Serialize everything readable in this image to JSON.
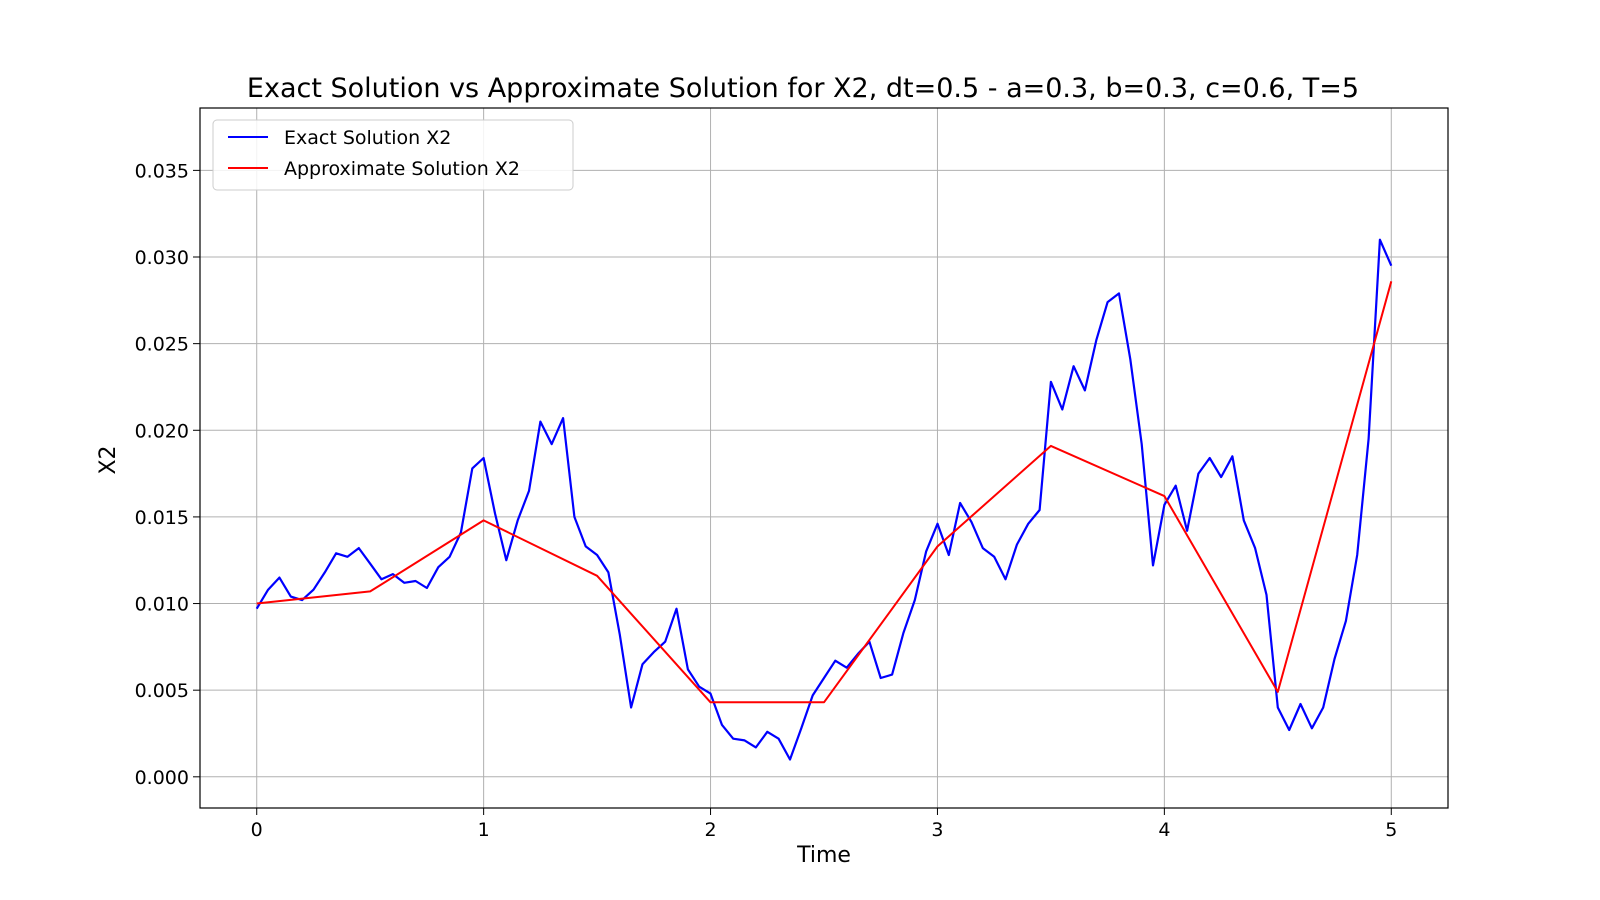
{
  "chart_data": {
    "type": "line",
    "title": "Exact Solution vs Approximate Solution for X2, dt=0.5 - a=0.3, b=0.3, c=0.6, T=5",
    "xlabel": "Time",
    "ylabel": "X2",
    "xlim": [
      -0.25,
      5.25
    ],
    "ylim": [
      -0.0018,
      0.0386
    ],
    "xticks": [
      0,
      1,
      2,
      3,
      4,
      5
    ],
    "xtick_labels": [
      "0",
      "1",
      "2",
      "3",
      "4",
      "5"
    ],
    "yticks": [
      0.0,
      0.005,
      0.01,
      0.015,
      0.02,
      0.025,
      0.03,
      0.035
    ],
    "ytick_labels": [
      "0.000",
      "0.005",
      "0.010",
      "0.015",
      "0.020",
      "0.025",
      "0.030",
      "0.035"
    ],
    "grid": true,
    "legend_position": "top-left",
    "series": [
      {
        "name": "Exact Solution X2",
        "color": "#0000ff",
        "x": [
          0,
          0.05,
          0.1,
          0.15,
          0.2,
          0.25,
          0.3,
          0.35,
          0.4,
          0.45,
          0.5,
          0.55,
          0.6,
          0.65,
          0.7,
          0.75,
          0.8,
          0.85,
          0.9,
          0.95,
          1.0,
          1.05,
          1.1,
          1.15,
          1.2,
          1.25,
          1.3,
          1.35,
          1.4,
          1.45,
          1.5,
          1.55,
          1.6,
          1.65,
          1.7,
          1.75,
          1.8,
          1.85,
          1.9,
          1.95,
          2.0,
          2.05,
          2.1,
          2.15,
          2.2,
          2.25,
          2.3,
          2.35,
          2.4,
          2.45,
          2.5,
          2.55,
          2.6,
          2.65,
          2.7,
          2.75,
          2.8,
          2.85,
          2.9,
          2.95,
          3.0,
          3.05,
          3.1,
          3.15,
          3.2,
          3.25,
          3.3,
          3.35,
          3.4,
          3.45,
          3.5,
          3.55,
          3.6,
          3.65,
          3.7,
          3.75,
          3.8,
          3.85,
          3.9,
          3.95,
          4.0,
          4.05,
          4.1,
          4.15,
          4.2,
          4.25,
          4.3,
          4.35,
          4.4,
          4.45,
          4.5,
          4.55,
          4.6,
          4.65,
          4.7,
          4.75,
          4.8,
          4.85,
          4.9,
          4.95,
          5.0
        ],
        "y": [
          0.0097,
          0.0108,
          0.0115,
          0.0104,
          0.0102,
          0.0108,
          0.0118,
          0.0129,
          0.0127,
          0.0132,
          0.0123,
          0.0114,
          0.0117,
          0.0112,
          0.0113,
          0.0109,
          0.0121,
          0.0127,
          0.0141,
          0.0178,
          0.0184,
          0.0152,
          0.0125,
          0.0148,
          0.0165,
          0.0205,
          0.0192,
          0.0207,
          0.015,
          0.0133,
          0.0128,
          0.0118,
          0.0082,
          0.004,
          0.0065,
          0.0072,
          0.0078,
          0.0097,
          0.0062,
          0.0052,
          0.0048,
          0.003,
          0.0022,
          0.0021,
          0.0017,
          0.0026,
          0.0022,
          0.001,
          0.0028,
          0.0047,
          0.0057,
          0.0067,
          0.0063,
          0.0071,
          0.0078,
          0.0057,
          0.0059,
          0.0083,
          0.0102,
          0.013,
          0.0146,
          0.0128,
          0.0158,
          0.0147,
          0.0132,
          0.0127,
          0.0114,
          0.0134,
          0.0146,
          0.0154,
          0.0228,
          0.0212,
          0.0237,
          0.0223,
          0.0252,
          0.0274,
          0.0279,
          0.0241,
          0.0192,
          0.0122,
          0.0157,
          0.0168,
          0.0142,
          0.0175,
          0.0184,
          0.0173,
          0.0185,
          0.0148,
          0.0132,
          0.0105,
          0.004,
          0.0027,
          0.0042,
          0.0028,
          0.004,
          0.0068,
          0.009,
          0.0128,
          0.0195,
          0.031,
          0.0295
        ]
      },
      {
        "name": "Approximate Solution X2",
        "color": "#ff0000",
        "x": [
          0,
          0.5,
          1.0,
          1.5,
          2.0,
          2.5,
          3.0,
          3.5,
          4.0,
          4.5,
          5.0
        ],
        "y": [
          0.01,
          0.0107,
          0.0148,
          0.0116,
          0.0043,
          0.0043,
          0.0133,
          0.0191,
          0.0162,
          0.0049,
          0.0286
        ]
      }
    ]
  }
}
